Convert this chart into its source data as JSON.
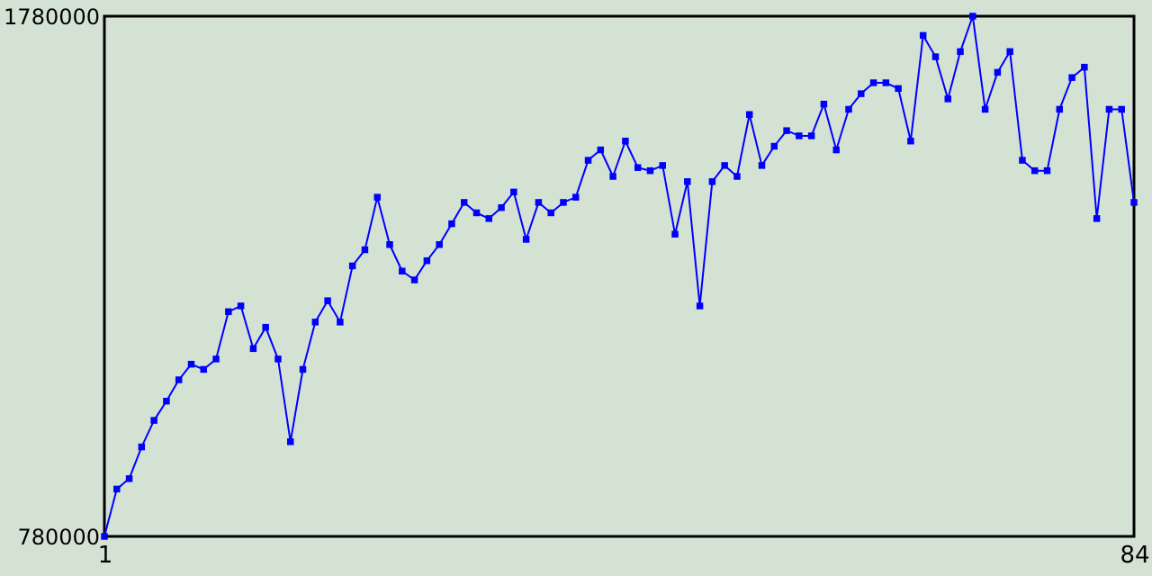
{
  "chart_data": {
    "type": "line",
    "x": [
      1,
      2,
      3,
      4,
      5,
      6,
      7,
      8,
      9,
      10,
      11,
      12,
      13,
      14,
      15,
      16,
      17,
      18,
      19,
      20,
      21,
      22,
      23,
      24,
      25,
      26,
      27,
      28,
      29,
      30,
      31,
      32,
      33,
      34,
      35,
      36,
      37,
      38,
      39,
      40,
      41,
      42,
      43,
      44,
      45,
      46,
      47,
      48,
      49,
      50,
      51,
      52,
      53,
      54,
      55,
      56,
      57,
      58,
      59,
      60,
      61,
      62,
      63,
      64,
      65,
      66,
      67,
      68,
      69,
      70,
      71,
      72,
      73,
      74,
      75,
      76,
      77,
      78,
      79,
      80,
      81,
      82,
      83,
      84
    ],
    "series": [
      {
        "color": "#0000ff",
        "values": [
          780000,
          871000,
          891000,
          952000,
          1003000,
          1040000,
          1081000,
          1111000,
          1101000,
          1121000,
          1212000,
          1223000,
          1141000,
          1182000,
          1121000,
          962000,
          1101000,
          1192000,
          1233000,
          1192000,
          1300000,
          1331000,
          1432000,
          1341000,
          1290000,
          1273000,
          1310000,
          1341000,
          1381000,
          1422000,
          1402000,
          1391000,
          1412000,
          1442000,
          1351000,
          1422000,
          1402000,
          1422000,
          1432000,
          1503000,
          1523000,
          1472000,
          1540000,
          1489000,
          1483000,
          1493000,
          1361000,
          1462000,
          1223000,
          1462000,
          1493000,
          1472000,
          1591000,
          1493000,
          1530000,
          1560000,
          1550000,
          1550000,
          1611000,
          1523000,
          1601000,
          1631000,
          1652000,
          1652000,
          1641000,
          1540000,
          1743000,
          1702000,
          1621000,
          1712000,
          1780000,
          1601000,
          1672000,
          1712000,
          1503000,
          1483000,
          1483000,
          1601000,
          1662000,
          1682000,
          1391000,
          1601000,
          1601000,
          1422000
        ]
      }
    ],
    "xlim": [
      1,
      84
    ],
    "xticks": [
      1,
      84
    ],
    "ylim": [
      780000,
      1780000
    ],
    "yticks": [
      780000,
      1780000
    ],
    "marker": "square",
    "grid": false
  }
}
